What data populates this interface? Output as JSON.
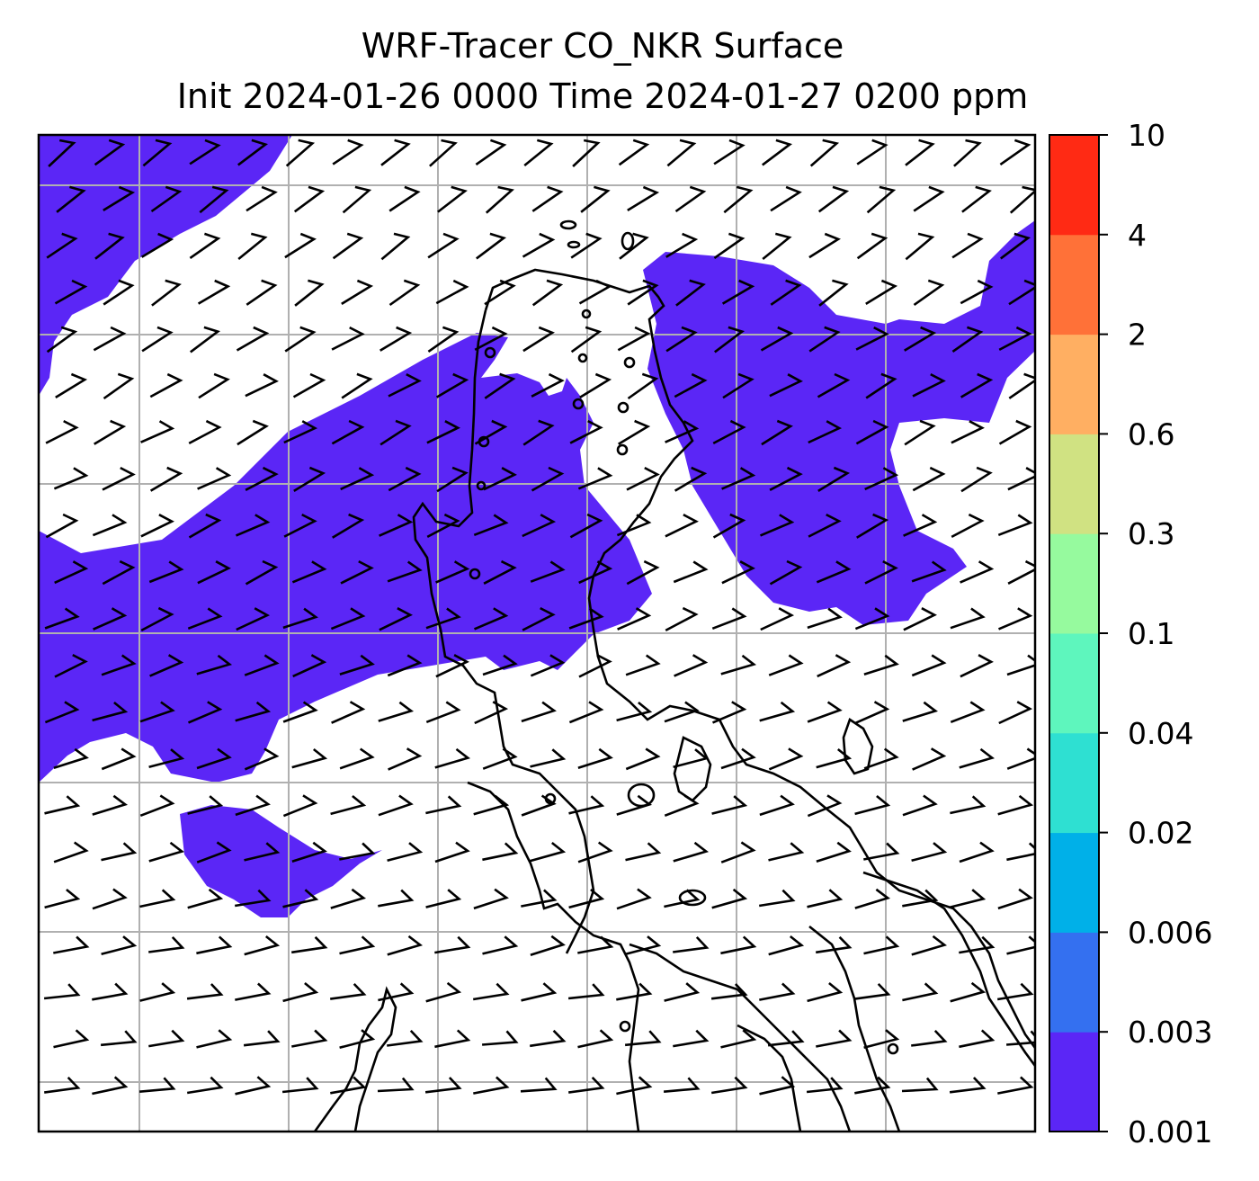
{
  "title": {
    "line1": "WRF-Tracer CO_NKR Surface",
    "line2": "Init 2024-01-26 0000 Time 2024-01-27 0200 ppm"
  },
  "colorbar": {
    "levels": [
      "0.001",
      "0.003",
      "0.006",
      "0.02",
      "0.04",
      "0.1",
      "0.3",
      "0.6",
      "2",
      "4",
      "10"
    ],
    "colors": [
      "#5b26f6",
      "#3470f0",
      "#00b0e8",
      "#2ee0d2",
      "#5ef6bd",
      "#96fa9e",
      "#d0e282",
      "#ffaf62",
      "#ff7138",
      "#ff2a14"
    ]
  },
  "map": {
    "tracer_fill_color": "#5b26f6",
    "wind_barbs": "present",
    "gridlines": true
  }
}
